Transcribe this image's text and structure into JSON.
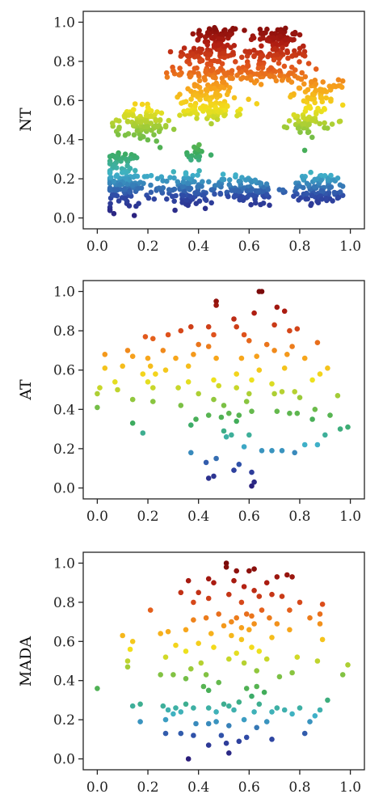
{
  "colormap": [
    "#2a1d7a",
    "#2f4aa6",
    "#3fb2c9",
    "#3dab5c",
    "#8cc63f",
    "#f2e21c",
    "#f7a21c",
    "#e0531c",
    "#b01e12",
    "#7a0a0a"
  ],
  "chart_data": [
    {
      "type": "scatter",
      "ylabel": "NT",
      "xlim": [
        0.0,
        1.0
      ],
      "ylim": [
        0.0,
        1.0
      ],
      "xticks": [
        "0.0",
        "0.2",
        "0.4",
        "0.6",
        "0.8",
        "1.0"
      ],
      "yticks": [
        "0.0",
        "0.2",
        "0.4",
        "0.6",
        "0.8",
        "1.0"
      ],
      "grid": false,
      "color_by": "y",
      "clusters": [
        {
          "x": 0.47,
          "y": 0.93,
          "sx": 0.05,
          "sy": 0.025,
          "n": 50
        },
        {
          "x": 0.71,
          "y": 0.93,
          "sx": 0.05,
          "sy": 0.025,
          "n": 50
        },
        {
          "x": 0.44,
          "y": 0.84,
          "sx": 0.07,
          "sy": 0.03,
          "n": 70
        },
        {
          "x": 0.7,
          "y": 0.84,
          "sx": 0.07,
          "sy": 0.03,
          "n": 70
        },
        {
          "x": 0.45,
          "y": 0.74,
          "sx": 0.07,
          "sy": 0.025,
          "n": 60
        },
        {
          "x": 0.7,
          "y": 0.74,
          "sx": 0.07,
          "sy": 0.025,
          "n": 60
        },
        {
          "x": 0.43,
          "y": 0.64,
          "sx": 0.06,
          "sy": 0.03,
          "n": 60
        },
        {
          "x": 0.88,
          "y": 0.64,
          "sx": 0.05,
          "sy": 0.03,
          "n": 60
        },
        {
          "x": 0.45,
          "y": 0.55,
          "sx": 0.06,
          "sy": 0.025,
          "n": 70
        },
        {
          "x": 0.17,
          "y": 0.52,
          "sx": 0.04,
          "sy": 0.03,
          "n": 40
        },
        {
          "x": 0.84,
          "y": 0.5,
          "sx": 0.04,
          "sy": 0.04,
          "n": 50
        },
        {
          "x": 0.18,
          "y": 0.45,
          "sx": 0.05,
          "sy": 0.03,
          "n": 55
        },
        {
          "x": 0.1,
          "y": 0.31,
          "sx": 0.04,
          "sy": 0.015,
          "n": 18
        },
        {
          "x": 0.38,
          "y": 0.33,
          "sx": 0.03,
          "sy": 0.02,
          "n": 15
        },
        {
          "x": 0.1,
          "y": 0.17,
          "sx": 0.05,
          "sy": 0.06,
          "n": 120
        },
        {
          "x": 0.35,
          "y": 0.15,
          "sx": 0.06,
          "sy": 0.05,
          "n": 90
        },
        {
          "x": 0.58,
          "y": 0.14,
          "sx": 0.07,
          "sy": 0.04,
          "n": 110
        },
        {
          "x": 0.88,
          "y": 0.15,
          "sx": 0.06,
          "sy": 0.04,
          "n": 100
        }
      ]
    },
    {
      "type": "scatter",
      "ylabel": "AT",
      "xlim": [
        0.0,
        1.0
      ],
      "ylim": [
        0.0,
        1.0
      ],
      "xticks": [
        "0.0",
        "0.2",
        "0.4",
        "0.6",
        "0.8",
        "1.0"
      ],
      "yticks": [
        "0.0",
        "0.2",
        "0.4",
        "0.6",
        "0.8",
        "1.0"
      ],
      "grid": false,
      "color_by": "y",
      "points": [
        [
          0.64,
          1.0
        ],
        [
          0.65,
          1.0
        ],
        [
          0.47,
          0.95
        ],
        [
          0.47,
          0.93
        ],
        [
          0.62,
          0.89
        ],
        [
          0.71,
          0.92
        ],
        [
          0.74,
          0.9
        ],
        [
          0.54,
          0.86
        ],
        [
          0.7,
          0.83
        ],
        [
          0.44,
          0.82
        ],
        [
          0.33,
          0.8
        ],
        [
          0.37,
          0.82
        ],
        [
          0.55,
          0.82
        ],
        [
          0.76,
          0.8
        ],
        [
          0.79,
          0.81
        ],
        [
          0.58,
          0.78
        ],
        [
          0.19,
          0.77
        ],
        [
          0.28,
          0.78
        ],
        [
          0.46,
          0.78
        ],
        [
          0.22,
          0.76
        ],
        [
          0.6,
          0.75
        ],
        [
          0.87,
          0.74
        ],
        [
          0.4,
          0.73
        ],
        [
          0.67,
          0.73
        ],
        [
          0.77,
          0.72
        ],
        [
          0.44,
          0.72
        ],
        [
          0.12,
          0.7
        ],
        [
          0.26,
          0.7
        ],
        [
          0.14,
          0.67
        ],
        [
          0.38,
          0.68
        ],
        [
          0.7,
          0.7
        ],
        [
          0.63,
          0.67
        ],
        [
          0.03,
          0.68
        ],
        [
          0.2,
          0.66
        ],
        [
          0.31,
          0.66
        ],
        [
          0.47,
          0.66
        ],
        [
          0.57,
          0.66
        ],
        [
          0.75,
          0.68
        ],
        [
          0.82,
          0.66
        ],
        [
          0.03,
          0.61
        ],
        [
          0.1,
          0.62
        ],
        [
          0.21,
          0.62
        ],
        [
          0.36,
          0.62
        ],
        [
          0.64,
          0.6
        ],
        [
          0.74,
          0.61
        ],
        [
          0.91,
          0.61
        ],
        [
          0.18,
          0.58
        ],
        [
          0.23,
          0.58
        ],
        [
          0.27,
          0.6
        ],
        [
          0.55,
          0.58
        ],
        [
          0.88,
          0.58
        ],
        [
          0.07,
          0.54
        ],
        [
          0.2,
          0.54
        ],
        [
          0.36,
          0.54
        ],
        [
          0.46,
          0.55
        ],
        [
          0.61,
          0.55
        ],
        [
          0.69,
          0.53
        ],
        [
          0.85,
          0.55
        ],
        [
          0.01,
          0.51
        ],
        [
          0.08,
          0.5
        ],
        [
          0.22,
          0.51
        ],
        [
          0.32,
          0.51
        ],
        [
          0.48,
          0.52
        ],
        [
          0.55,
          0.51
        ],
        [
          0.73,
          0.49
        ],
        [
          0.78,
          0.49
        ],
        [
          0.0,
          0.48
        ],
        [
          0.4,
          0.48
        ],
        [
          0.6,
          0.48
        ],
        [
          0.7,
          0.48
        ],
        [
          0.8,
          0.46
        ],
        [
          0.95,
          0.47
        ],
        [
          0.14,
          0.45
        ],
        [
          0.22,
          0.44
        ],
        [
          0.46,
          0.45
        ],
        [
          0.59,
          0.44
        ],
        [
          0.0,
          0.41
        ],
        [
          0.33,
          0.42
        ],
        [
          0.5,
          0.42
        ],
        [
          0.86,
          0.4
        ],
        [
          0.61,
          0.39
        ],
        [
          0.71,
          0.39
        ],
        [
          0.44,
          0.37
        ],
        [
          0.52,
          0.38
        ],
        [
          0.76,
          0.38
        ],
        [
          0.79,
          0.38
        ],
        [
          0.56,
          0.37
        ],
        [
          0.92,
          0.37
        ],
        [
          0.49,
          0.36
        ],
        [
          0.85,
          0.35
        ],
        [
          0.39,
          0.35
        ],
        [
          0.55,
          0.34
        ],
        [
          0.14,
          0.33
        ],
        [
          0.37,
          0.32
        ],
        [
          0.99,
          0.31
        ],
        [
          0.96,
          0.3
        ],
        [
          0.5,
          0.29
        ],
        [
          0.18,
          0.28
        ],
        [
          0.53,
          0.27
        ],
        [
          0.6,
          0.27
        ],
        [
          0.51,
          0.26
        ],
        [
          0.9,
          0.27
        ],
        [
          0.82,
          0.22
        ],
        [
          0.87,
          0.22
        ],
        [
          0.58,
          0.21
        ],
        [
          0.37,
          0.18
        ],
        [
          0.65,
          0.19
        ],
        [
          0.69,
          0.19
        ],
        [
          0.73,
          0.19
        ],
        [
          0.78,
          0.18
        ],
        [
          0.43,
          0.13
        ],
        [
          0.47,
          0.15
        ],
        [
          0.56,
          0.12
        ],
        [
          0.54,
          0.09
        ],
        [
          0.61,
          0.08
        ],
        [
          0.46,
          0.06
        ],
        [
          0.44,
          0.05
        ],
        [
          0.62,
          0.03
        ],
        [
          0.61,
          0.01
        ]
      ]
    },
    {
      "type": "scatter",
      "ylabel": "MADA",
      "xlim": [
        0.0,
        1.0
      ],
      "ylim": [
        0.0,
        1.0
      ],
      "xticks": [
        "0.0",
        "0.2",
        "0.4",
        "0.6",
        "0.8",
        "1.0"
      ],
      "yticks": [
        "0.0",
        "0.2",
        "0.4",
        "0.6",
        "0.8",
        "1.0"
      ],
      "grid": false,
      "color_by": "y",
      "points": [
        [
          0.51,
          1.0
        ],
        [
          0.51,
          0.98
        ],
        [
          0.62,
          0.97
        ],
        [
          0.55,
          0.96
        ],
        [
          0.6,
          0.96
        ],
        [
          0.44,
          0.92
        ],
        [
          0.36,
          0.91
        ],
        [
          0.71,
          0.93
        ],
        [
          0.77,
          0.93
        ],
        [
          0.75,
          0.94
        ],
        [
          0.46,
          0.9
        ],
        [
          0.54,
          0.91
        ],
        [
          0.67,
          0.9
        ],
        [
          0.58,
          0.88
        ],
        [
          0.62,
          0.86
        ],
        [
          0.33,
          0.85
        ],
        [
          0.4,
          0.85
        ],
        [
          0.52,
          0.84
        ],
        [
          0.69,
          0.84
        ],
        [
          0.44,
          0.82
        ],
        [
          0.64,
          0.83
        ],
        [
          0.73,
          0.83
        ],
        [
          0.38,
          0.8
        ],
        [
          0.57,
          0.8
        ],
        [
          0.8,
          0.8
        ],
        [
          0.89,
          0.79
        ],
        [
          0.21,
          0.76
        ],
        [
          0.65,
          0.76
        ],
        [
          0.76,
          0.76
        ],
        [
          0.88,
          0.74
        ],
        [
          0.48,
          0.74
        ],
        [
          0.59,
          0.74
        ],
        [
          0.61,
          0.73
        ],
        [
          0.43,
          0.72
        ],
        [
          0.55,
          0.72
        ],
        [
          0.68,
          0.72
        ],
        [
          0.38,
          0.71
        ],
        [
          0.84,
          0.72
        ],
        [
          0.53,
          0.7
        ],
        [
          0.62,
          0.69
        ],
        [
          0.71,
          0.69
        ],
        [
          0.5,
          0.68
        ],
        [
          0.57,
          0.67
        ],
        [
          0.76,
          0.66
        ],
        [
          0.35,
          0.66
        ],
        [
          0.45,
          0.64
        ],
        [
          0.6,
          0.66
        ],
        [
          0.88,
          0.69
        ],
        [
          0.25,
          0.64
        ],
        [
          0.28,
          0.65
        ],
        [
          0.53,
          0.63
        ],
        [
          0.1,
          0.63
        ],
        [
          0.57,
          0.61
        ],
        [
          0.69,
          0.62
        ],
        [
          0.89,
          0.61
        ],
        [
          0.14,
          0.6
        ],
        [
          0.31,
          0.58
        ],
        [
          0.4,
          0.59
        ],
        [
          0.46,
          0.57
        ],
        [
          0.61,
          0.57
        ],
        [
          0.13,
          0.56
        ],
        [
          0.35,
          0.55
        ],
        [
          0.64,
          0.55
        ],
        [
          0.55,
          0.54
        ],
        [
          0.79,
          0.52
        ],
        [
          0.12,
          0.5
        ],
        [
          0.27,
          0.52
        ],
        [
          0.52,
          0.51
        ],
        [
          0.67,
          0.51
        ],
        [
          0.41,
          0.49
        ],
        [
          0.58,
          0.49
        ],
        [
          0.87,
          0.5
        ],
        [
          0.99,
          0.48
        ],
        [
          0.12,
          0.47
        ],
        [
          0.37,
          0.46
        ],
        [
          0.63,
          0.45
        ],
        [
          0.77,
          0.44
        ],
        [
          0.3,
          0.43
        ],
        [
          0.43,
          0.43
        ],
        [
          0.97,
          0.43
        ],
        [
          0.25,
          0.43
        ],
        [
          0.72,
          0.42
        ],
        [
          0.35,
          0.41
        ],
        [
          0.48,
          0.39
        ],
        [
          0.0,
          0.36
        ],
        [
          0.42,
          0.37
        ],
        [
          0.59,
          0.36
        ],
        [
          0.63,
          0.37
        ],
        [
          0.44,
          0.35
        ],
        [
          0.66,
          0.34
        ],
        [
          0.61,
          0.32
        ],
        [
          0.91,
          0.3
        ],
        [
          0.17,
          0.28
        ],
        [
          0.14,
          0.27
        ],
        [
          0.26,
          0.27
        ],
        [
          0.35,
          0.28
        ],
        [
          0.5,
          0.28
        ],
        [
          0.52,
          0.27
        ],
        [
          0.56,
          0.29
        ],
        [
          0.64,
          0.28
        ],
        [
          0.28,
          0.25
        ],
        [
          0.31,
          0.26
        ],
        [
          0.38,
          0.26
        ],
        [
          0.44,
          0.26
        ],
        [
          0.47,
          0.24
        ],
        [
          0.54,
          0.25
        ],
        [
          0.71,
          0.26
        ],
        [
          0.74,
          0.25
        ],
        [
          0.8,
          0.26
        ],
        [
          0.88,
          0.25
        ],
        [
          0.33,
          0.24
        ],
        [
          0.3,
          0.23
        ],
        [
          0.62,
          0.24
        ],
        [
          0.69,
          0.24
        ],
        [
          0.77,
          0.23
        ],
        [
          0.86,
          0.22
        ],
        [
          0.17,
          0.19
        ],
        [
          0.27,
          0.2
        ],
        [
          0.47,
          0.19
        ],
        [
          0.58,
          0.2
        ],
        [
          0.67,
          0.19
        ],
        [
          0.84,
          0.19
        ],
        [
          0.39,
          0.18
        ],
        [
          0.44,
          0.18
        ],
        [
          0.52,
          0.17
        ],
        [
          0.63,
          0.16
        ],
        [
          0.27,
          0.13
        ],
        [
          0.33,
          0.13
        ],
        [
          0.82,
          0.13
        ],
        [
          0.38,
          0.12
        ],
        [
          0.49,
          0.12
        ],
        [
          0.59,
          0.11
        ],
        [
          0.69,
          0.1
        ],
        [
          0.56,
          0.09
        ],
        [
          0.51,
          0.08
        ],
        [
          0.44,
          0.07
        ],
        [
          0.52,
          0.03
        ],
        [
          0.36,
          0.0
        ]
      ]
    }
  ]
}
